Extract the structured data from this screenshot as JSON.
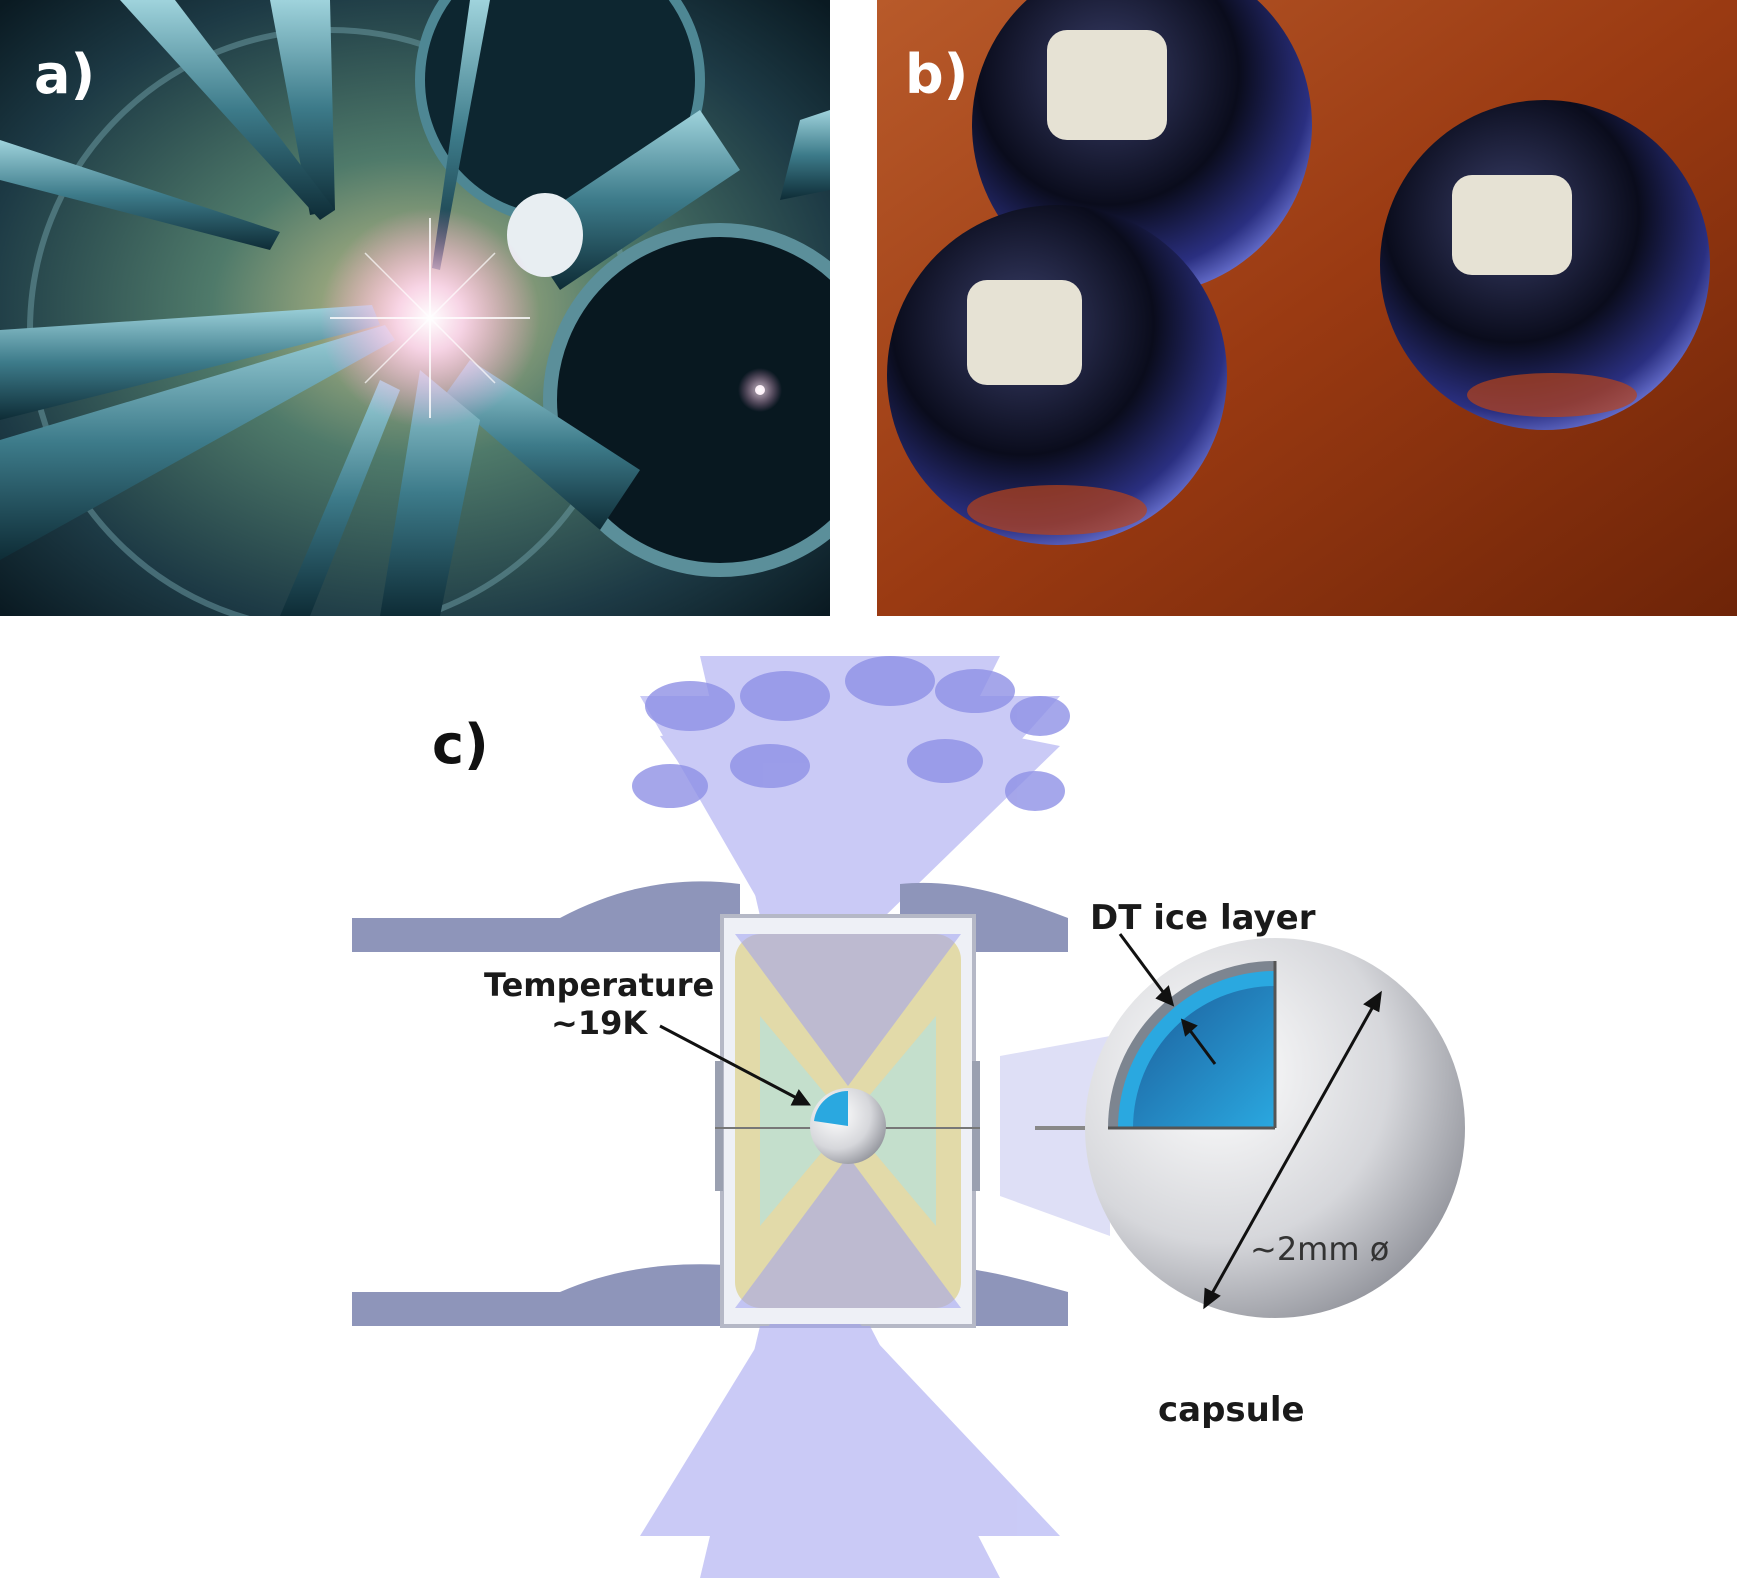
{
  "panels": {
    "a": {
      "label": "a)"
    },
    "b": {
      "label": "b)"
    },
    "c": {
      "label": "c)"
    }
  },
  "annotations": {
    "dt_ice_layer": "DT ice layer",
    "temperature_line1": "Temperature",
    "temperature_line2": "~19K",
    "diameter": "~2mm ø",
    "capsule": "capsule"
  },
  "colors": {
    "laser_beam": "#9fa0f0",
    "ice_layer": "#2aa8e0",
    "hohlraum_gold": "#d8c96a",
    "background_b": "#9a3a12"
  }
}
